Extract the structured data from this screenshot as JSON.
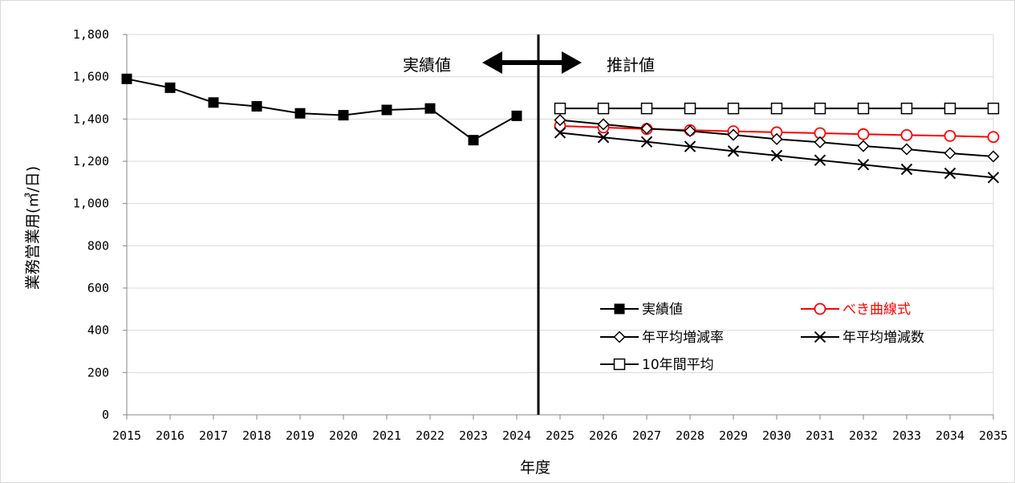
{
  "chart_data": {
    "type": "line",
    "xlabel": "年度",
    "ylabel": "業務営業用(㎥/日)",
    "ylim": [
      0,
      1800
    ],
    "yticks": [
      0,
      200,
      400,
      600,
      800,
      1000,
      1200,
      1400,
      1600,
      1800
    ],
    "ytick_labels": [
      "0",
      "200",
      "400",
      "600",
      "800",
      "1,000",
      "1,200",
      "1,400",
      "1,600",
      "1,800"
    ],
    "categories": [
      "2015",
      "2016",
      "2017",
      "2018",
      "2019",
      "2020",
      "2021",
      "2022",
      "2023",
      "2024",
      "2025",
      "2026",
      "2027",
      "2028",
      "2029",
      "2030",
      "2031",
      "2032",
      "2033",
      "2034",
      "2035"
    ],
    "grid": "horizontal",
    "legend_position": "bottom-right",
    "annotations": {
      "divider_between": [
        "2024",
        "2025"
      ],
      "left_label": "実績値",
      "right_label": "推計値"
    },
    "series": [
      {
        "name": "実績値",
        "color": "#000000",
        "marker": "filled-square",
        "x": [
          "2015",
          "2016",
          "2017",
          "2018",
          "2019",
          "2020",
          "2021",
          "2022",
          "2023",
          "2024"
        ],
        "values": [
          1590,
          1548,
          1478,
          1460,
          1427,
          1418,
          1443,
          1450,
          1300,
          1415
        ]
      },
      {
        "name": "べき曲線式",
        "color": "#ff0000",
        "marker": "open-circle",
        "x": [
          "2025",
          "2026",
          "2027",
          "2028",
          "2029",
          "2030",
          "2031",
          "2032",
          "2033",
          "2034",
          "2035"
        ],
        "values": [
          1367,
          1360,
          1353,
          1347,
          1342,
          1337,
          1333,
          1328,
          1324,
          1320,
          1315
        ]
      },
      {
        "name": "年平均増減率",
        "color": "#000000",
        "marker": "open-diamond",
        "x": [
          "2025",
          "2026",
          "2027",
          "2028",
          "2029",
          "2030",
          "2031",
          "2032",
          "2033",
          "2034",
          "2035"
        ],
        "values": [
          1395,
          1375,
          1355,
          1343,
          1325,
          1305,
          1290,
          1272,
          1257,
          1238,
          1223
        ]
      },
      {
        "name": "年平均増減数",
        "color": "#000000",
        "marker": "x",
        "x": [
          "2025",
          "2026",
          "2027",
          "2028",
          "2029",
          "2030",
          "2031",
          "2032",
          "2033",
          "2034",
          "2035"
        ],
        "values": [
          1335,
          1313,
          1292,
          1270,
          1248,
          1227,
          1205,
          1184,
          1162,
          1143,
          1123
        ]
      },
      {
        "name": "10年間平均",
        "color": "#000000",
        "marker": "open-square",
        "x": [
          "2025",
          "2026",
          "2027",
          "2028",
          "2029",
          "2030",
          "2031",
          "2032",
          "2033",
          "2034",
          "2035"
        ],
        "values": [
          1450,
          1450,
          1450,
          1450,
          1450,
          1450,
          1450,
          1450,
          1450,
          1450,
          1450
        ]
      }
    ]
  }
}
